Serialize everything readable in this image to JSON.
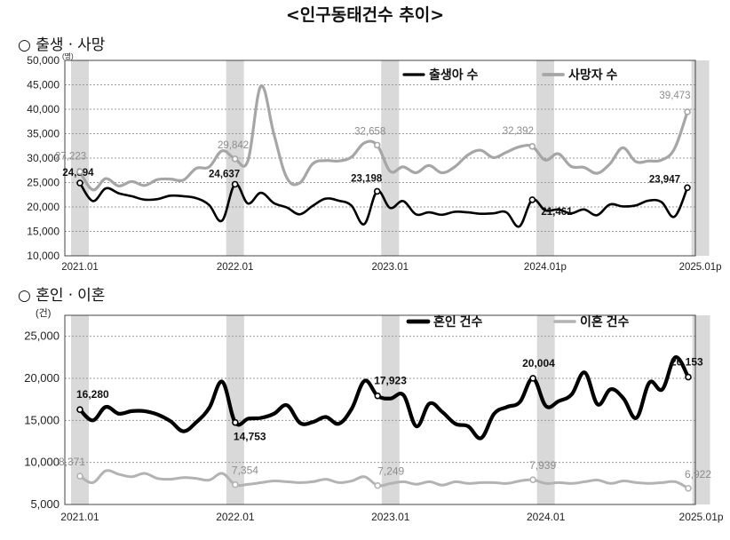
{
  "page": {
    "title": "<인구동태건수 추이>",
    "section1": "○ 출생ㆍ사망",
    "section2": "○ 혼인ㆍ이혼"
  },
  "chart_data": [
    {
      "type": "line",
      "unit": "(명)",
      "ylim": [
        10000,
        50000
      ],
      "yticks": [
        "10,000",
        "15,000",
        "20,000",
        "25,000",
        "30,000",
        "35,000",
        "40,000",
        "45,000",
        "50,000"
      ],
      "xtick_labels": [
        "2021.01",
        "2022.01",
        "2023.01",
        "2024.01p",
        "2025.01p"
      ],
      "grid": true,
      "legend_position": "top-right",
      "highlight_months": [
        0,
        12,
        24,
        36,
        48
      ],
      "series": [
        {
          "name": "출생아 수",
          "color": "#000000",
          "values": [
            24894,
            21200,
            23800,
            22800,
            22200,
            21500,
            21600,
            22300,
            22200,
            21800,
            20400,
            17200,
            24637,
            20700,
            22900,
            20800,
            19900,
            18500,
            20200,
            21700,
            21300,
            20300,
            16500,
            23198,
            19800,
            21200,
            18500,
            18900,
            18400,
            19000,
            18900,
            18600,
            18700,
            18900,
            16000,
            21461,
            19300,
            19500,
            18700,
            19500,
            18300,
            20500,
            20100,
            20300,
            21300,
            21000,
            18000,
            23947
          ]
        },
        {
          "name": "사망자 수",
          "color": "#a6a6a6",
          "values": [
            27223,
            23500,
            25800,
            24300,
            25200,
            24400,
            25600,
            25700,
            25500,
            27900,
            28200,
            31500,
            29842,
            29500,
            44700,
            35000,
            26000,
            24900,
            28800,
            29500,
            29400,
            30200,
            33100,
            32658,
            27300,
            28200,
            27000,
            28500,
            27000,
            28200,
            30600,
            31600,
            30100,
            31200,
            32300,
            32392,
            29600,
            30900,
            28300,
            28100,
            26900,
            28800,
            32100,
            29300,
            29400,
            29600,
            31900,
            39473
          ]
        }
      ],
      "data_labels": [
        {
          "series": 0,
          "index": 0,
          "text": "24,894"
        },
        {
          "series": 0,
          "index": 12,
          "text": "24,637"
        },
        {
          "series": 0,
          "index": 23,
          "text": "23,198"
        },
        {
          "series": 0,
          "index": 35,
          "text": "21,461"
        },
        {
          "series": 0,
          "index": 47,
          "text": "23,947"
        },
        {
          "series": 1,
          "index": 0,
          "text": "27,223"
        },
        {
          "series": 1,
          "index": 12,
          "text": "29,842"
        },
        {
          "series": 1,
          "index": 23,
          "text": "32,658"
        },
        {
          "series": 1,
          "index": 35,
          "text": "32,392"
        },
        {
          "series": 1,
          "index": 47,
          "text": "39,473"
        }
      ]
    },
    {
      "type": "line",
      "unit": "(건)",
      "ylim": [
        5000,
        27500
      ],
      "yticks": [
        "5,000",
        "10,000",
        "15,000",
        "20,000",
        "25,000"
      ],
      "xtick_labels": [
        "2021.01",
        "2022.01",
        "2023.01",
        "2024.01",
        "2025.01p"
      ],
      "grid": true,
      "legend_position": "top-right",
      "highlight_months": [
        0,
        12,
        24,
        36,
        48
      ],
      "series": [
        {
          "name": "혼인 건수",
          "color": "#000000",
          "values": [
            16280,
            15000,
            16600,
            15800,
            16100,
            16100,
            15700,
            14900,
            13700,
            14800,
            16500,
            19600,
            14753,
            15200,
            15300,
            15800,
            16800,
            14700,
            14800,
            15400,
            14600,
            16400,
            19700,
            17923,
            17600,
            18000,
            14300,
            17000,
            16000,
            14600,
            14300,
            12900,
            15800,
            16600,
            17200,
            20004,
            16700,
            17300,
            18100,
            20700,
            16900,
            18700,
            17600,
            15300,
            19500,
            18700,
            22500,
            20153
          ]
        },
        {
          "name": "이혼 건수",
          "color": "#b3b3b3",
          "values": [
            8371,
            7600,
            9000,
            8600,
            8300,
            8700,
            8100,
            8000,
            8200,
            8100,
            7900,
            8700,
            7354,
            7400,
            7600,
            7800,
            7700,
            7600,
            7700,
            8000,
            7600,
            7800,
            8300,
            7249,
            7500,
            7700,
            7400,
            7700,
            7300,
            7700,
            7500,
            7600,
            7600,
            7500,
            7800,
            7939,
            7500,
            7600,
            7500,
            7700,
            7900,
            7500,
            7800,
            7600,
            7500,
            7600,
            7700,
            6922
          ]
        }
      ],
      "data_labels": [
        {
          "series": 0,
          "index": 0,
          "text": "16,280"
        },
        {
          "series": 0,
          "index": 12,
          "text": "14,753"
        },
        {
          "series": 0,
          "index": 23,
          "text": "17,923"
        },
        {
          "series": 0,
          "index": 35,
          "text": "20,004"
        },
        {
          "series": 0,
          "index": 47,
          "text": "20,153"
        },
        {
          "series": 1,
          "index": 0,
          "text": "8,371"
        },
        {
          "series": 1,
          "index": 12,
          "text": "7,354"
        },
        {
          "series": 1,
          "index": 23,
          "text": "7,249"
        },
        {
          "series": 1,
          "index": 35,
          "text": "7,939"
        },
        {
          "series": 1,
          "index": 47,
          "text": "6,922"
        }
      ]
    }
  ]
}
